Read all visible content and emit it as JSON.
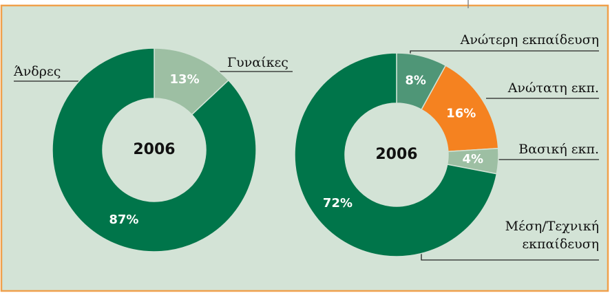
{
  "chart_data": [
    {
      "type": "pie",
      "center_label": "2006",
      "categories": [
        "Γυναίκες",
        "Άνδρες"
      ],
      "values": [
        13,
        87
      ],
      "value_labels": [
        "13%",
        "87%"
      ],
      "colors": [
        "#9dbfa3",
        "#00754a"
      ]
    },
    {
      "type": "pie",
      "center_label": "2006",
      "categories": [
        "Ανώτερη εκπαίδευση",
        "Ανώτατη εκπ.",
        "Βασική εκπ.",
        "Μέση/Τεχνική εκπαίδευση"
      ],
      "values": [
        8,
        16,
        4,
        72
      ],
      "value_labels": [
        "8%",
        "16%",
        "4%",
        "72%"
      ],
      "colors": [
        "#4f9677",
        "#f58220",
        "#9dbfa3",
        "#00754a"
      ]
    }
  ]
}
